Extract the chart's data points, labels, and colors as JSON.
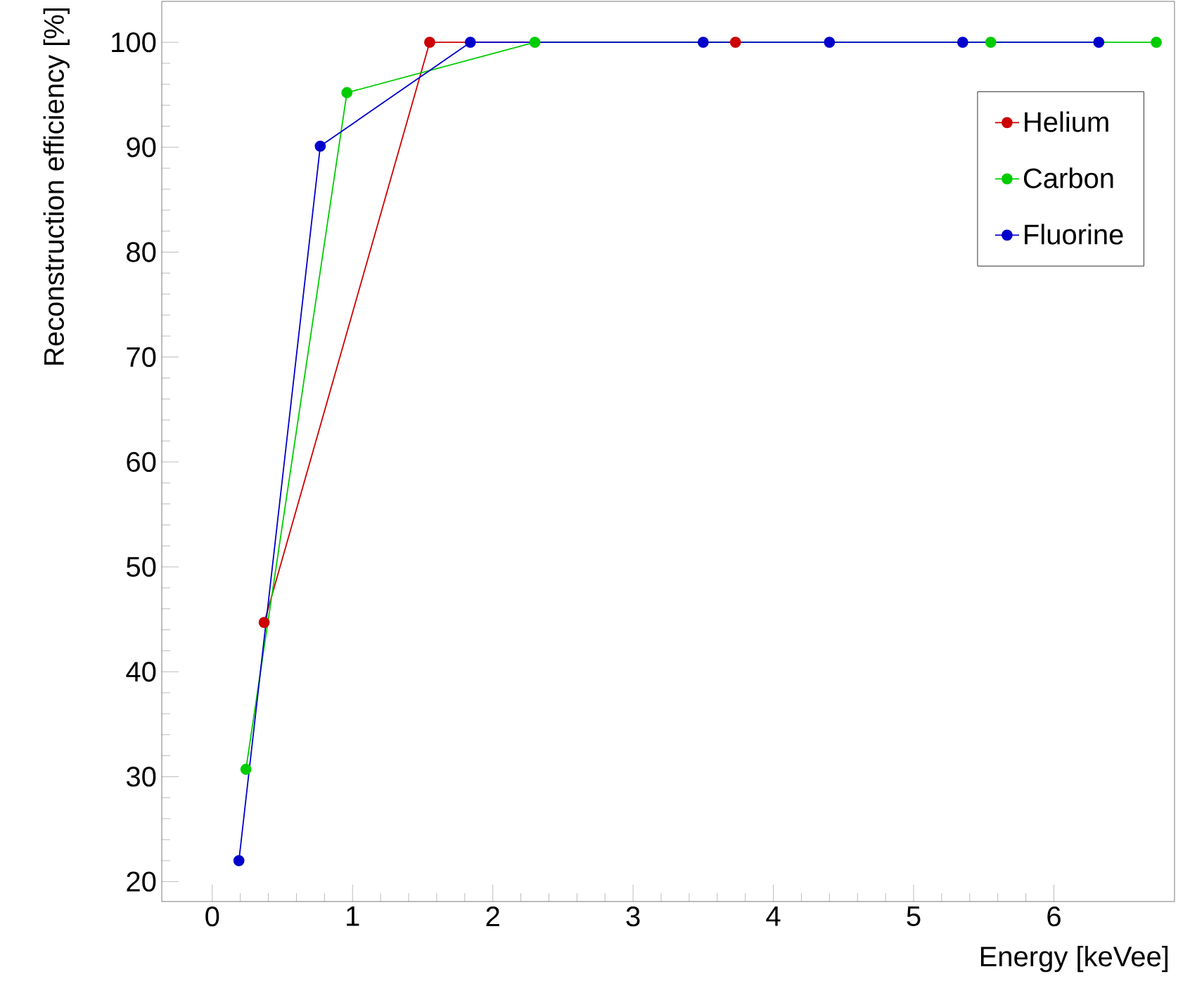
{
  "chart_data": {
    "type": "line",
    "xlabel": "Energy [keVee]",
    "ylabel": "Reconstruction efficiency [%]",
    "xlim": [
      -0.36,
      6.86
    ],
    "ylim": [
      18.1,
      103.9
    ],
    "xticks": [
      0,
      1,
      2,
      3,
      4,
      5,
      6
    ],
    "yticks": [
      20,
      30,
      40,
      50,
      60,
      70,
      80,
      90,
      100
    ],
    "marker": "circle",
    "line_style": "solid",
    "legend": "top right",
    "grid": false,
    "series": [
      {
        "name": "Helium",
        "color": "#cc0000",
        "x": [
          0.37,
          1.55,
          3.73
        ],
        "values": [
          44.7,
          100,
          100
        ]
      },
      {
        "name": "Carbon",
        "color": "#00cc00",
        "x": [
          0.24,
          0.96,
          2.3,
          5.55,
          6.73
        ],
        "values": [
          30.7,
          95.2,
          100,
          100,
          100
        ]
      },
      {
        "name": "Fluorine",
        "color": "#0000cc",
        "x": [
          0.19,
          0.77,
          1.84,
          3.5,
          4.4,
          5.35,
          6.32
        ],
        "values": [
          22.0,
          90.1,
          100,
          100,
          100,
          100,
          100
        ]
      }
    ]
  }
}
